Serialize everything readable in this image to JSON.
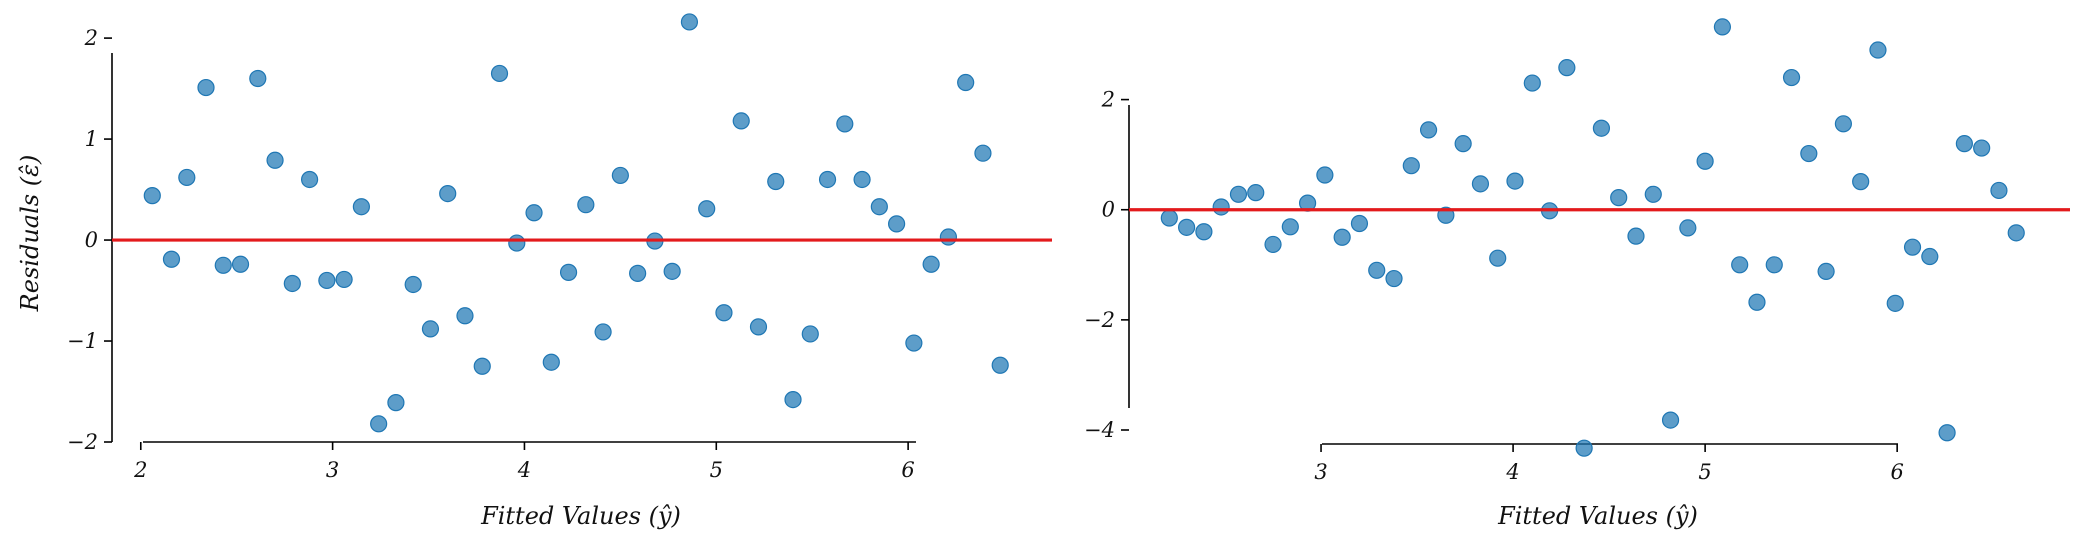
{
  "colors": {
    "point": "#1f77b4",
    "point_alpha": 0.72,
    "zero_line": "#e31a1c",
    "axis": "#000000"
  },
  "chart_data": [
    {
      "type": "scatter",
      "title": "",
      "xlabel": "Fitted Values (ŷ)",
      "ylabel": "Residuals (ε̂)",
      "xlim": [
        1.85,
        6.75
      ],
      "ylim": [
        -2.0,
        2.1
      ],
      "xticks": [
        2,
        3,
        4,
        5,
        6
      ],
      "yticks": [
        -2,
        -1,
        0,
        1,
        2
      ],
      "xtick_labels": [
        "2",
        "3",
        "4",
        "5",
        "6"
      ],
      "ytick_labels": [
        "−2",
        "−1",
        "0",
        "1",
        "2"
      ],
      "reference_line": {
        "y": 0,
        "color": "#e31a1c"
      },
      "grid": false,
      "points": [
        {
          "x": 2.06,
          "y": 0.44
        },
        {
          "x": 2.16,
          "y": -0.19
        },
        {
          "x": 2.24,
          "y": 0.62
        },
        {
          "x": 2.34,
          "y": 1.51
        },
        {
          "x": 2.43,
          "y": -0.25
        },
        {
          "x": 2.52,
          "y": -0.24
        },
        {
          "x": 2.61,
          "y": 1.6
        },
        {
          "x": 2.7,
          "y": 0.79
        },
        {
          "x": 2.79,
          "y": -0.43
        },
        {
          "x": 2.88,
          "y": 0.6
        },
        {
          "x": 2.97,
          "y": -0.4
        },
        {
          "x": 3.06,
          "y": -0.39
        },
        {
          "x": 3.15,
          "y": 0.33
        },
        {
          "x": 3.24,
          "y": -1.82
        },
        {
          "x": 3.33,
          "y": -1.61
        },
        {
          "x": 3.42,
          "y": -0.44
        },
        {
          "x": 3.51,
          "y": -0.88
        },
        {
          "x": 3.6,
          "y": 0.46
        },
        {
          "x": 3.69,
          "y": -0.75
        },
        {
          "x": 3.78,
          "y": -1.25
        },
        {
          "x": 3.87,
          "y": 1.65
        },
        {
          "x": 3.96,
          "y": -0.03
        },
        {
          "x": 4.05,
          "y": 0.27
        },
        {
          "x": 4.14,
          "y": -1.21
        },
        {
          "x": 4.23,
          "y": -0.32
        },
        {
          "x": 4.32,
          "y": 0.35
        },
        {
          "x": 4.41,
          "y": -0.91
        },
        {
          "x": 4.5,
          "y": 0.64
        },
        {
          "x": 4.59,
          "y": -0.33
        },
        {
          "x": 4.68,
          "y": -0.01
        },
        {
          "x": 4.77,
          "y": -0.31
        },
        {
          "x": 4.86,
          "y": 2.16
        },
        {
          "x": 4.95,
          "y": 0.31
        },
        {
          "x": 5.04,
          "y": -0.72
        },
        {
          "x": 5.13,
          "y": 1.18
        },
        {
          "x": 5.22,
          "y": -0.86
        },
        {
          "x": 5.31,
          "y": 0.58
        },
        {
          "x": 5.4,
          "y": -1.58
        },
        {
          "x": 5.49,
          "y": -0.93
        },
        {
          "x": 5.58,
          "y": 0.6
        },
        {
          "x": 5.67,
          "y": 1.15
        },
        {
          "x": 5.76,
          "y": 0.6
        },
        {
          "x": 5.85,
          "y": 0.33
        },
        {
          "x": 5.94,
          "y": 0.16
        },
        {
          "x": 6.03,
          "y": -1.02
        },
        {
          "x": 6.12,
          "y": -0.24
        },
        {
          "x": 6.21,
          "y": 0.03
        },
        {
          "x": 6.3,
          "y": 1.56
        },
        {
          "x": 6.39,
          "y": 0.86
        },
        {
          "x": 6.48,
          "y": -1.24
        }
      ]
    },
    {
      "type": "scatter",
      "title": "",
      "xlabel": "Fitted Values (ŷ)",
      "ylabel": "",
      "xlim": [
        2.0,
        6.9
      ],
      "ylim": [
        -4.0,
        3.3
      ],
      "xticks": [
        3,
        4,
        5,
        6
      ],
      "yticks": [
        -4,
        -2,
        0,
        2
      ],
      "xtick_labels": [
        "3",
        "4",
        "5",
        "6"
      ],
      "ytick_labels": [
        "−4",
        "−2",
        "0",
        "2"
      ],
      "reference_line": {
        "y": 0,
        "color": "#e31a1c"
      },
      "grid": false,
      "points": [
        {
          "x": 2.21,
          "y": -0.15
        },
        {
          "x": 2.3,
          "y": -0.32
        },
        {
          "x": 2.39,
          "y": -0.4
        },
        {
          "x": 2.48,
          "y": 0.05
        },
        {
          "x": 2.57,
          "y": 0.28
        },
        {
          "x": 2.66,
          "y": 0.31
        },
        {
          "x": 2.75,
          "y": -0.63
        },
        {
          "x": 2.84,
          "y": -0.31
        },
        {
          "x": 2.93,
          "y": 0.12
        },
        {
          "x": 3.02,
          "y": 0.63
        },
        {
          "x": 3.11,
          "y": -0.5
        },
        {
          "x": 3.2,
          "y": -0.25
        },
        {
          "x": 3.29,
          "y": -1.1
        },
        {
          "x": 3.38,
          "y": -1.25
        },
        {
          "x": 3.47,
          "y": 0.8
        },
        {
          "x": 3.56,
          "y": 1.45
        },
        {
          "x": 3.65,
          "y": -0.1
        },
        {
          "x": 3.74,
          "y": 1.2
        },
        {
          "x": 3.83,
          "y": 0.47
        },
        {
          "x": 3.92,
          "y": -0.88
        },
        {
          "x": 4.01,
          "y": 0.52
        },
        {
          "x": 4.1,
          "y": 2.3
        },
        {
          "x": 4.19,
          "y": -0.02
        },
        {
          "x": 4.28,
          "y": 2.58
        },
        {
          "x": 4.37,
          "y": -4.33
        },
        {
          "x": 4.46,
          "y": 1.48
        },
        {
          "x": 4.55,
          "y": 0.22
        },
        {
          "x": 4.64,
          "y": -0.48
        },
        {
          "x": 4.73,
          "y": 0.28
        },
        {
          "x": 4.82,
          "y": -3.82
        },
        {
          "x": 4.91,
          "y": -0.33
        },
        {
          "x": 5.0,
          "y": 0.88
        },
        {
          "x": 5.09,
          "y": 3.32
        },
        {
          "x": 5.18,
          "y": -1.0
        },
        {
          "x": 5.27,
          "y": -1.68
        },
        {
          "x": 5.36,
          "y": -1.0
        },
        {
          "x": 5.45,
          "y": 2.4
        },
        {
          "x": 5.54,
          "y": 1.02
        },
        {
          "x": 5.63,
          "y": -1.12
        },
        {
          "x": 5.72,
          "y": 1.56
        },
        {
          "x": 5.81,
          "y": 0.51
        },
        {
          "x": 5.9,
          "y": 2.9
        },
        {
          "x": 5.99,
          "y": -1.7
        },
        {
          "x": 6.08,
          "y": -0.68
        },
        {
          "x": 6.17,
          "y": -0.85
        },
        {
          "x": 6.26,
          "y": -4.05
        },
        {
          "x": 6.35,
          "y": 1.2
        },
        {
          "x": 6.44,
          "y": 1.12
        },
        {
          "x": 6.53,
          "y": 0.35
        },
        {
          "x": 6.62,
          "y": -0.42
        }
      ]
    }
  ]
}
